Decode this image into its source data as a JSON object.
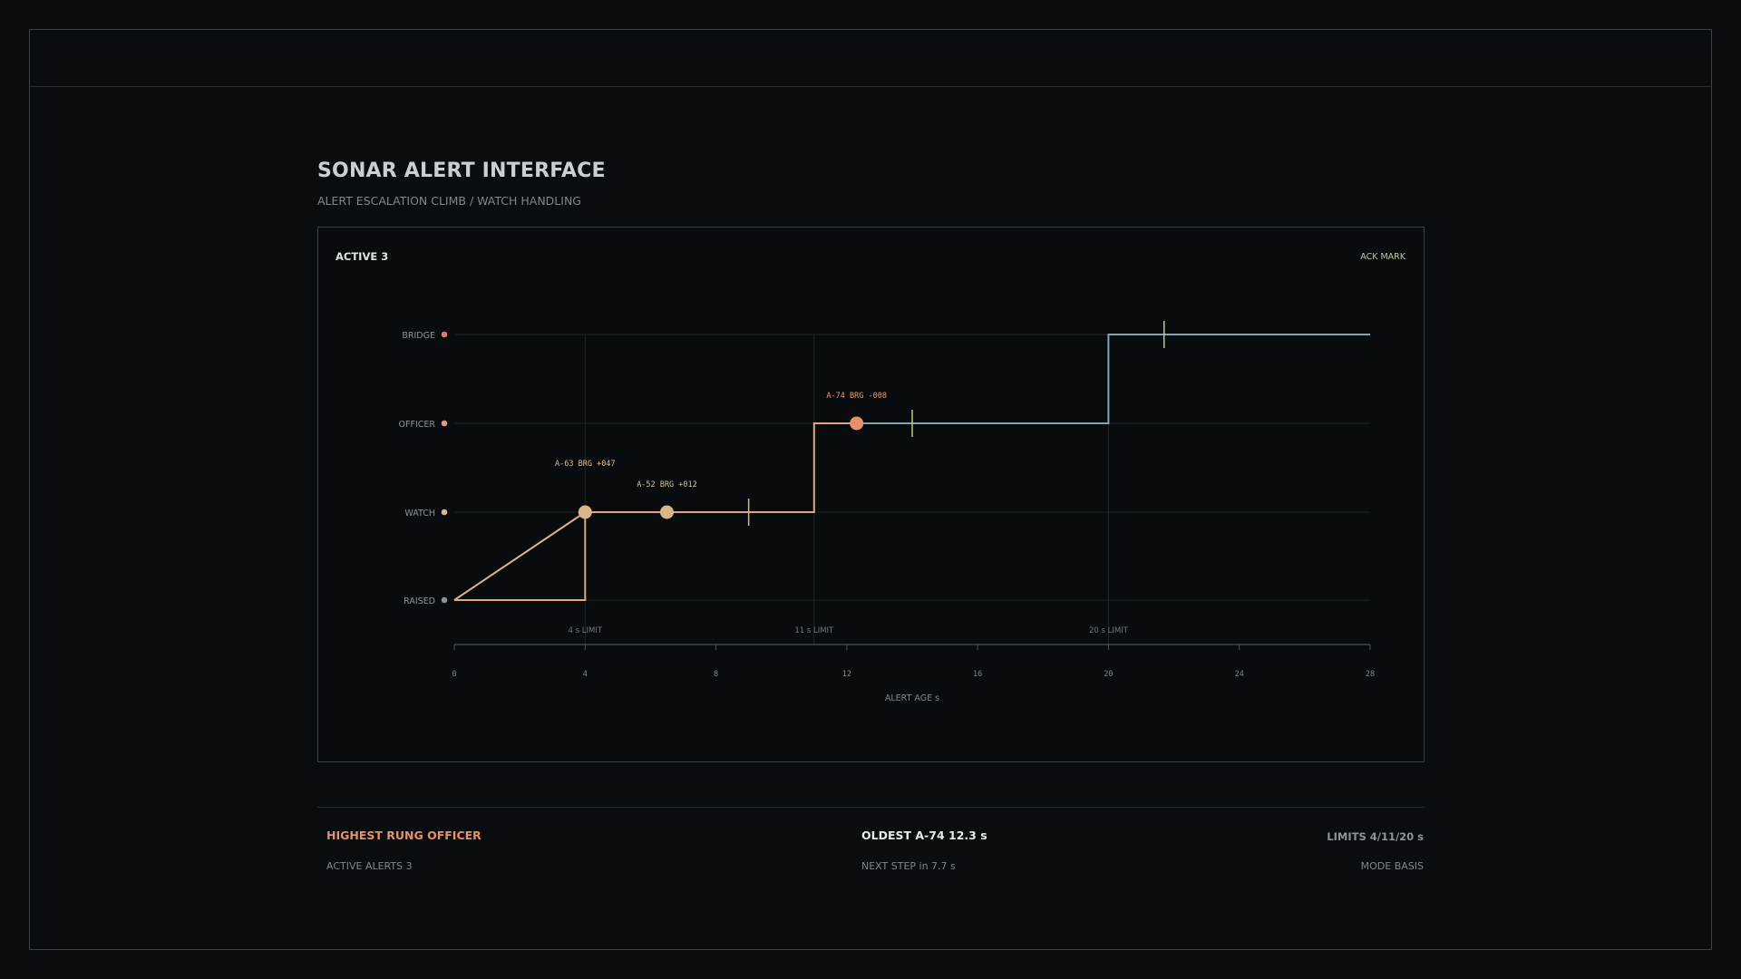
{
  "header": {
    "title": "SONAR ALERT INTERFACE",
    "subtitle": "ALERT ESCALATION CLIMB / WATCH HANDLING"
  },
  "panel": {
    "left_label": "ACTIVE 3",
    "right_label": "ACK MARK"
  },
  "colors": {
    "background": "#0a0d0f",
    "grid": "#1f2629",
    "axis": "#4a5358",
    "watch_trace": "#dcb487",
    "escalated_trace": "#e3a583",
    "baseline_trace": "#86a2ac",
    "ack_mark": "#b4cf8c",
    "bridge": "#e07a6a",
    "officer": "#e39a7a",
    "watch": "#d9b58c",
    "raised": "#8a9196",
    "label_text": "#8a949a",
    "a63_label": "#e0bd8a",
    "a52_label": "#d6bf95",
    "a74_label": "#ec9b75"
  },
  "chart_data": {
    "type": "line",
    "xlabel": "ALERT AGE s",
    "xlim": [
      0,
      28
    ],
    "x_ticks": [
      0,
      4,
      8,
      12,
      16,
      20,
      24,
      28
    ],
    "y_levels": [
      {
        "name": "RAISED",
        "level": 0,
        "color": "#8a9196"
      },
      {
        "name": "WATCH",
        "level": 1,
        "color": "#d9b58c"
      },
      {
        "name": "OFFICER",
        "level": 2,
        "color": "#e39a7a"
      },
      {
        "name": "BRIDGE",
        "level": 3,
        "color": "#e07a6a"
      }
    ],
    "limits": [
      {
        "x": 4,
        "label": "4 s LIMIT"
      },
      {
        "x": 11,
        "label": "11 s LIMIT"
      },
      {
        "x": 20,
        "label": "20 s LIMIT"
      }
    ],
    "series": [
      {
        "segments": [
          {
            "points": [
              [
                0,
                0
              ],
              [
                4,
                1
              ]
            ],
            "color": "#dcb487"
          },
          {
            "points": [
              [
                0,
                0
              ],
              [
                4,
                0
              ],
              [
                4,
                1
              ],
              [
                11,
                1
              ],
              [
                11,
                2
              ],
              [
                12.3,
                2
              ]
            ],
            "color": "#e3a583"
          },
          {
            "points": [
              [
                12.3,
                2
              ],
              [
                20,
                2
              ],
              [
                20,
                3
              ],
              [
                28,
                3
              ]
            ],
            "color": "#86a2ac"
          }
        ]
      }
    ],
    "alerts": [
      {
        "id": "A-63",
        "label": "A-63 BRG +047",
        "x": 4,
        "level": 1,
        "color": "#d9b58c",
        "label_color": "#e0bd8a"
      },
      {
        "id": "A-52",
        "label": "A-52 BRG +012",
        "x": 6.5,
        "level": 1,
        "color": "#d9b58c",
        "label_color": "#d6bf95"
      },
      {
        "id": "A-74",
        "label": "A-74 BRG -008",
        "x": 12.3,
        "level": 2,
        "color": "#e8906a",
        "label_color": "#ec9b75"
      }
    ],
    "ack_marks": [
      {
        "x": 9,
        "level": 1,
        "color": "#d9b58c"
      },
      {
        "x": 14,
        "level": 2,
        "color": "#b4cf8c"
      },
      {
        "x": 21.7,
        "level": 3,
        "color": "#b4cf8c"
      }
    ]
  },
  "footer": {
    "highest_rung": "HIGHEST RUNG OFFICER",
    "active_alerts": "ACTIVE ALERTS 3",
    "oldest": "OLDEST A-74  12.3 s",
    "next_step": "NEXT STEP in  7.7 s",
    "limits": "LIMITS 4/11/20 s",
    "mode": "MODE BASIS"
  }
}
